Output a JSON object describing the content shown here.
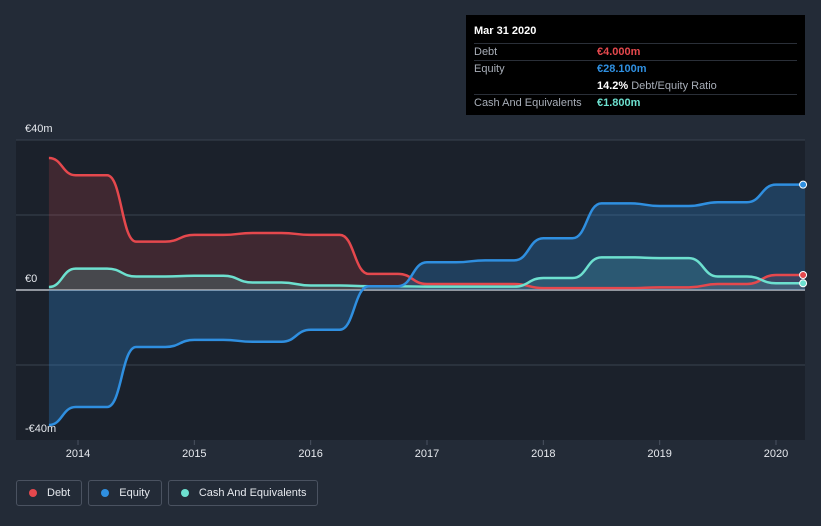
{
  "tooltip": {
    "date": "Mar 31 2020",
    "debt_label": "Debt",
    "debt_value": "€4.000m",
    "equity_label": "Equity",
    "equity_value": "€28.100m",
    "ratio_value": "14.2%",
    "ratio_label": "Debt/Equity Ratio",
    "cash_label": "Cash And Equivalents",
    "cash_value": "€1.800m"
  },
  "legend": {
    "debt": "Debt",
    "equity": "Equity",
    "cash": "Cash And Equivalents"
  },
  "colors": {
    "background": "#232b37",
    "plot": "#1b212b",
    "debt": "#e5484d",
    "equity": "#2f8fe0",
    "cash": "#6de0cf"
  },
  "chart_data": {
    "type": "line",
    "y_ticks": [
      {
        "value": 40,
        "label": "€40m"
      },
      {
        "value": 0,
        "label": "€0"
      },
      {
        "value": -40,
        "label": "-€40m"
      }
    ],
    "ylim": [
      -40,
      40
    ],
    "x_ticks": [
      {
        "value": 2014,
        "label": "2014"
      },
      {
        "value": 2015,
        "label": "2015"
      },
      {
        "value": 2016,
        "label": "2016"
      },
      {
        "value": 2017,
        "label": "2017"
      },
      {
        "value": 2018,
        "label": "2018"
      },
      {
        "value": 2019,
        "label": "2019"
      },
      {
        "value": 2020,
        "label": "2020"
      }
    ],
    "xlim": [
      2013.55,
      2020.25
    ],
    "series": [
      {
        "name": "Debt",
        "color": "#e5484d",
        "fill": "debt",
        "points": [
          [
            2013.75,
            35.2
          ],
          [
            2013.98,
            30.6
          ],
          [
            2014.25,
            30.6
          ],
          [
            2014.5,
            12.9
          ],
          [
            2014.75,
            12.9
          ],
          [
            2015.0,
            14.7
          ],
          [
            2015.25,
            14.7
          ],
          [
            2015.5,
            15.2
          ],
          [
            2015.75,
            15.2
          ],
          [
            2016.0,
            14.7
          ],
          [
            2016.25,
            14.7
          ],
          [
            2016.5,
            4.3
          ],
          [
            2016.75,
            4.3
          ],
          [
            2017.0,
            1.6
          ],
          [
            2017.25,
            1.6
          ],
          [
            2017.5,
            1.6
          ],
          [
            2017.75,
            1.6
          ],
          [
            2018.0,
            0.5
          ],
          [
            2018.25,
            0.5
          ],
          [
            2018.5,
            0.5
          ],
          [
            2018.75,
            0.5
          ],
          [
            2019.0,
            0.7
          ],
          [
            2019.25,
            0.7
          ],
          [
            2019.5,
            1.6
          ],
          [
            2019.75,
            1.6
          ],
          [
            2020.0,
            4.0
          ],
          [
            2020.25,
            4.0
          ]
        ]
      },
      {
        "name": "Equity",
        "color": "#2f8fe0",
        "fill": "equity",
        "points": [
          [
            2013.75,
            -36.0
          ],
          [
            2013.98,
            -31.2
          ],
          [
            2014.25,
            -31.2
          ],
          [
            2014.5,
            -15.2
          ],
          [
            2014.75,
            -15.2
          ],
          [
            2015.0,
            -13.3
          ],
          [
            2015.25,
            -13.3
          ],
          [
            2015.5,
            -13.8
          ],
          [
            2015.75,
            -13.8
          ],
          [
            2016.0,
            -10.6
          ],
          [
            2016.25,
            -10.6
          ],
          [
            2016.5,
            1.0
          ],
          [
            2016.75,
            1.0
          ],
          [
            2017.0,
            7.4
          ],
          [
            2017.25,
            7.4
          ],
          [
            2017.5,
            7.9
          ],
          [
            2017.75,
            7.9
          ],
          [
            2018.0,
            13.8
          ],
          [
            2018.25,
            13.8
          ],
          [
            2018.5,
            23.1
          ],
          [
            2018.75,
            23.1
          ],
          [
            2019.0,
            22.4
          ],
          [
            2019.25,
            22.4
          ],
          [
            2019.5,
            23.4
          ],
          [
            2019.75,
            23.4
          ],
          [
            2020.0,
            28.1
          ],
          [
            2020.25,
            28.1
          ]
        ]
      },
      {
        "name": "Cash And Equivalents",
        "color": "#6de0cf",
        "fill": "cash",
        "points": [
          [
            2013.75,
            0.8
          ],
          [
            2013.98,
            5.7
          ],
          [
            2014.25,
            5.7
          ],
          [
            2014.5,
            3.6
          ],
          [
            2014.75,
            3.6
          ],
          [
            2015.0,
            3.8
          ],
          [
            2015.25,
            3.8
          ],
          [
            2015.5,
            2.0
          ],
          [
            2015.75,
            2.0
          ],
          [
            2016.0,
            1.2
          ],
          [
            2016.25,
            1.2
          ],
          [
            2016.5,
            1.0
          ],
          [
            2016.75,
            1.0
          ],
          [
            2017.0,
            0.9
          ],
          [
            2017.25,
            0.9
          ],
          [
            2017.5,
            0.9
          ],
          [
            2017.75,
            0.9
          ],
          [
            2018.0,
            3.2
          ],
          [
            2018.25,
            3.2
          ],
          [
            2018.5,
            8.7
          ],
          [
            2018.75,
            8.7
          ],
          [
            2019.0,
            8.5
          ],
          [
            2019.25,
            8.5
          ],
          [
            2019.5,
            3.6
          ],
          [
            2019.75,
            3.6
          ],
          [
            2020.0,
            1.8
          ],
          [
            2020.25,
            1.8
          ]
        ]
      }
    ]
  }
}
